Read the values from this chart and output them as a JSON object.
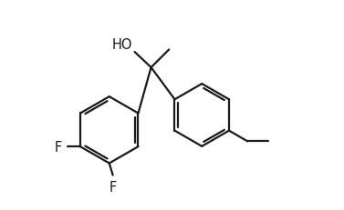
{
  "bg_color": "#ffffff",
  "line_color": "#1a1a1a",
  "line_width": 1.6,
  "font_size": 10.5,
  "font_family": "DejaVu Sans",
  "xlim": [
    0.0,
    10.0
  ],
  "ylim": [
    0.5,
    7.5
  ]
}
